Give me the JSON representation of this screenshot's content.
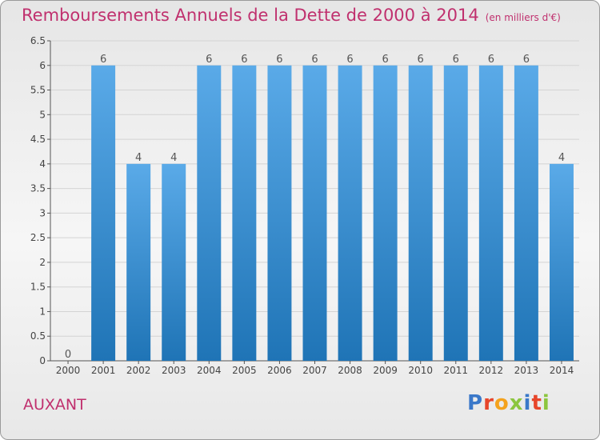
{
  "header": {
    "title": "Remboursements Annuels de la Dette de 2000 à 2014",
    "subtitle": "(en milliers d'€)"
  },
  "commune": "AUXANT",
  "logo": {
    "text": "Proxiti",
    "letter_colors": [
      "#3a78c9",
      "#e7452a",
      "#f4a21d",
      "#8cc63f",
      "#3a78c9",
      "#e7452a",
      "#8cc63f"
    ]
  },
  "colors": {
    "accent": "#c0306e",
    "bar_light": "#5aaae8",
    "bar_dark": "#1f74b6",
    "grid": "#d4d4d4",
    "axis": "#555555"
  },
  "chart_data": {
    "type": "bar",
    "categories": [
      "2000",
      "2001",
      "2002",
      "2003",
      "2004",
      "2005",
      "2006",
      "2007",
      "2008",
      "2009",
      "2010",
      "2011",
      "2012",
      "2013",
      "2014"
    ],
    "values": [
      0,
      6,
      4,
      4,
      6,
      6,
      6,
      6,
      6,
      6,
      6,
      6,
      6,
      6,
      4
    ],
    "yticks": [
      "0",
      "0.5",
      "1",
      "1.5",
      "2",
      "2.5",
      "3",
      "3.5",
      "4",
      "4.5",
      "5",
      "5.5",
      "6",
      "6.5"
    ],
    "ylim": [
      0,
      6.5
    ],
    "grid": true,
    "data_labels": true
  }
}
